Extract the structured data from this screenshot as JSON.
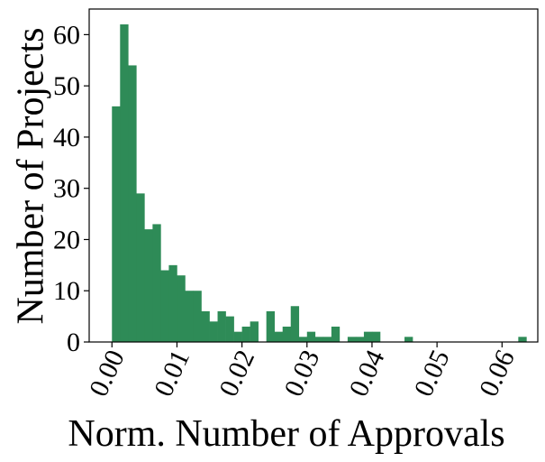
{
  "chart_data": {
    "type": "bar",
    "title": "",
    "xlabel": "Norm. Number of Approvals",
    "ylabel": "Number of Projects",
    "xlim": [
      -0.0035,
      0.0655
    ],
    "ylim": [
      0,
      65
    ],
    "xticks": [
      "0.00",
      "0.01",
      "0.02",
      "0.03",
      "0.04",
      "0.05",
      "0.06"
    ],
    "xtick_values": [
      0.0,
      0.01,
      0.02,
      0.03,
      0.04,
      0.05,
      0.06
    ],
    "yticks": [
      "0",
      "10",
      "20",
      "30",
      "40",
      "50",
      "60"
    ],
    "ytick_values": [
      0,
      10,
      20,
      30,
      40,
      50,
      60
    ],
    "bin_start": 0.0,
    "bin_width": 0.00125,
    "values": [
      46,
      62,
      54,
      29,
      22,
      23,
      14,
      15,
      13,
      10,
      10,
      6,
      4,
      6,
      5,
      2,
      3,
      4,
      0,
      6,
      2,
      3,
      7,
      1,
      2,
      1,
      1,
      3,
      0,
      1,
      1,
      2,
      2,
      0,
      0,
      0,
      1,
      0,
      0,
      0,
      0,
      0,
      0,
      0,
      0,
      0,
      0,
      0,
      0,
      0,
      1
    ],
    "grid": false,
    "legend": "none",
    "bar_color": "#2e8b57"
  }
}
